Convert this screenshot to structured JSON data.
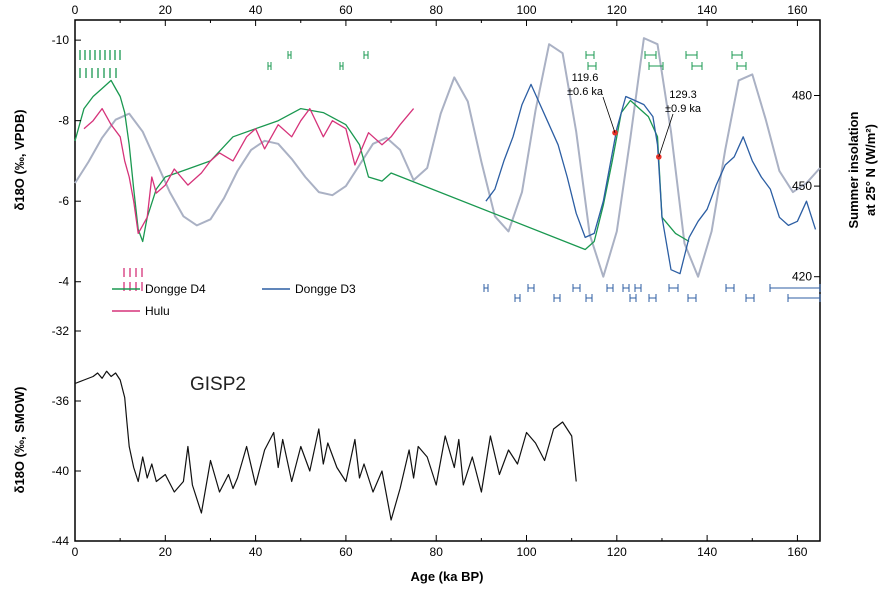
{
  "chart_data": [
    {
      "type": "line",
      "panel": "top",
      "xlabel": "Age (ka BP)",
      "xlim": [
        0,
        165
      ],
      "x_ticks": [
        "0",
        "20",
        "40",
        "60",
        "80",
        "100",
        "120",
        "140",
        "160"
      ],
      "ylabel_left": "δ18O (‰, VPDB)",
      "ylim_left": [
        -3,
        -10.5
      ],
      "y_ticks_left": [
        "-10",
        "-8",
        "-6",
        "-4"
      ],
      "ylabel_right_line1": "Summer insolation",
      "ylabel_right_line2": "at 25° N (W/m²)",
      "ylim_right": [
        405,
        505
      ],
      "y_ticks_right": [
        "480",
        "450",
        "420"
      ],
      "series": [
        {
          "name": "Dongge D4",
          "color": "#1a9850",
          "x": [
            0,
            2,
            4,
            6,
            8,
            9,
            10,
            11,
            12,
            13,
            14,
            15,
            16,
            18,
            20,
            25,
            30,
            35,
            40,
            45,
            50,
            55,
            60,
            63,
            65,
            68,
            70,
            113,
            115,
            117,
            119,
            120,
            121,
            123,
            125,
            127,
            129,
            130,
            133,
            136
          ],
          "y": [
            -7.5,
            -8.3,
            -8.6,
            -8.8,
            -9.0,
            -8.8,
            -8.6,
            -8.2,
            -7.4,
            -6.3,
            -5.3,
            -5.0,
            -5.6,
            -6.3,
            -6.6,
            -6.8,
            -7.0,
            -7.6,
            -7.8,
            -8.0,
            -8.3,
            -8.2,
            -7.9,
            -7.4,
            -6.6,
            -6.5,
            -6.7,
            -4.8,
            -5.0,
            -5.9,
            -7.0,
            -7.6,
            -8.2,
            -8.5,
            -8.3,
            -8.1,
            -7.6,
            -5.6,
            -5.2,
            -5.0
          ]
        },
        {
          "name": "Hulu",
          "color": "#d6337a",
          "x": [
            2,
            4,
            6,
            8,
            10,
            11,
            12,
            13,
            14,
            15,
            16,
            17,
            18,
            20,
            22,
            25,
            28,
            30,
            32,
            35,
            38,
            40,
            42,
            45,
            48,
            50,
            52,
            55,
            57,
            60,
            62,
            65,
            68,
            70,
            72,
            75
          ],
          "y": [
            -7.8,
            -8.0,
            -8.3,
            -7.9,
            -7.6,
            -7.0,
            -6.6,
            -6.0,
            -5.2,
            -5.4,
            -5.6,
            -6.6,
            -6.2,
            -6.4,
            -6.8,
            -6.4,
            -6.7,
            -7.0,
            -7.2,
            -7.0,
            -7.6,
            -7.8,
            -7.3,
            -7.9,
            -7.6,
            -8.0,
            -8.3,
            -7.6,
            -8.0,
            -7.8,
            -6.9,
            -7.7,
            -7.4,
            -7.6,
            -7.9,
            -8.3
          ]
        },
        {
          "name": "Dongge D3",
          "color": "#2c5ea3",
          "x": [
            91,
            93,
            95,
            97,
            99,
            101,
            103,
            105,
            107,
            109,
            111,
            113,
            115,
            117,
            119,
            120,
            122,
            124,
            126,
            128,
            129,
            130,
            132,
            134,
            136,
            138,
            140,
            142,
            144,
            146,
            148,
            150,
            152,
            154,
            156,
            158,
            160,
            162,
            164
          ],
          "y": [
            -6.0,
            -6.3,
            -7.0,
            -7.6,
            -8.4,
            -8.9,
            -8.4,
            -7.9,
            -7.4,
            -6.6,
            -5.7,
            -5.1,
            -5.2,
            -6.0,
            -7.2,
            -7.8,
            -8.6,
            -8.5,
            -8.4,
            -8.1,
            -7.4,
            -5.6,
            -4.3,
            -4.2,
            -5.1,
            -5.5,
            -5.8,
            -6.4,
            -6.9,
            -7.1,
            -7.6,
            -7.0,
            -6.6,
            -6.3,
            -5.6,
            -5.4,
            -5.5,
            -6.0,
            -5.3
          ]
        },
        {
          "name": "insolation",
          "color": "#aab1c4",
          "axis": "right",
          "x": [
            0,
            3,
            6,
            9,
            12,
            15,
            18,
            21,
            24,
            27,
            30,
            33,
            36,
            39,
            42,
            45,
            48,
            51,
            54,
            57,
            60,
            63,
            66,
            69,
            72,
            75,
            78,
            81,
            84,
            87,
            90,
            93,
            96,
            99,
            102,
            105,
            108,
            111,
            114,
            117,
            120,
            123,
            126,
            129,
            132,
            135,
            138,
            141,
            144,
            147,
            150,
            153,
            156,
            159,
            162,
            165
          ],
          "y": [
            451,
            458,
            466,
            472,
            474,
            468,
            458,
            448,
            440,
            437,
            439,
            446,
            455,
            462,
            465,
            464,
            459,
            453,
            448,
            447,
            450,
            457,
            464,
            466,
            462,
            452,
            456,
            474,
            486,
            478,
            458,
            440,
            435,
            448,
            475,
            497,
            494,
            468,
            434,
            420,
            435,
            466,
            499,
            497,
            468,
            431,
            420,
            435,
            462,
            485,
            487,
            472,
            455,
            448,
            451,
            456
          ]
        }
      ],
      "markers": [
        {
          "x": 119.6,
          "y": -7.7,
          "color": "#e8322a",
          "label_line1": "119.6",
          "label_line2": "±0.6 ka"
        },
        {
          "x": 129.3,
          "y": -7.1,
          "color": "#e8322a",
          "label_line1": "129.3",
          "label_line2": "±0.9 ka"
        }
      ],
      "legend": [
        "Dongge D4",
        "Dongge D3",
        "Hulu"
      ],
      "legend_position": "bottom-left"
    },
    {
      "type": "line",
      "panel": "bottom",
      "title": "GISP2",
      "ylabel": "δ18O (‰, SMOW)",
      "ylim": [
        -32,
        -44
      ],
      "y_ticks": [
        "-32",
        "-36",
        "-40",
        "-44"
      ],
      "series": [
        {
          "name": "GISP2",
          "color": "#111111",
          "x": [
            0,
            2,
            4,
            5,
            6,
            7,
            8,
            9,
            10,
            11,
            11.5,
            12,
            13,
            14,
            15,
            16,
            17,
            18,
            20,
            22,
            24,
            25,
            26,
            28,
            30,
            32,
            34,
            35,
            36,
            38,
            40,
            42,
            44,
            45,
            46,
            48,
            50,
            52,
            54,
            55,
            56,
            58,
            60,
            62,
            63,
            64,
            66,
            68,
            70,
            72,
            74,
            75,
            76,
            78,
            80,
            82,
            84,
            85,
            86,
            88,
            90,
            92,
            94,
            96,
            98,
            100,
            102,
            104,
            106,
            108,
            110,
            111
          ],
          "y": [
            -35.0,
            -34.8,
            -34.6,
            -34.4,
            -34.7,
            -34.3,
            -34.6,
            -34.4,
            -34.8,
            -35.8,
            -37.2,
            -38.6,
            -39.8,
            -40.6,
            -39.2,
            -40.4,
            -39.6,
            -40.6,
            -40.2,
            -41.2,
            -40.6,
            -38.6,
            -40.8,
            -42.4,
            -39.4,
            -41.2,
            -40.2,
            -41.0,
            -40.4,
            -38.6,
            -40.8,
            -38.8,
            -37.8,
            -39.8,
            -38.2,
            -40.6,
            -38.6,
            -40.0,
            -37.6,
            -39.6,
            -38.4,
            -39.8,
            -40.6,
            -38.2,
            -40.4,
            -39.6,
            -41.2,
            -40.0,
            -42.8,
            -41.0,
            -38.8,
            -40.4,
            -38.6,
            -39.2,
            -40.8,
            -38.0,
            -39.8,
            -38.2,
            -40.8,
            -39.2,
            -41.2,
            -38.0,
            -40.2,
            -38.8,
            -39.6,
            -37.8,
            -38.4,
            -39.4,
            -37.6,
            -37.2,
            -38.0,
            -40.6
          ]
        }
      ]
    }
  ]
}
